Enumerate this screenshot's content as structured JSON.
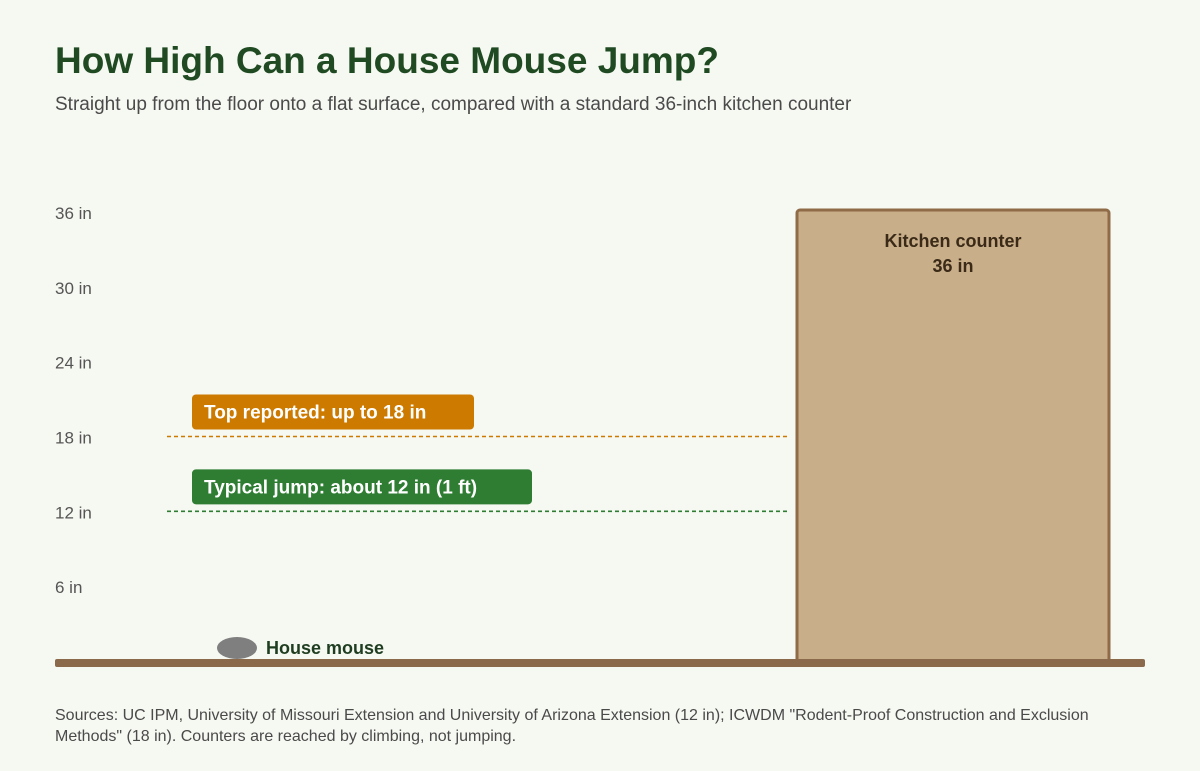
{
  "title": "How High Can a House Mouse Jump?",
  "subtitle": "Straight up from the floor onto a flat surface, compared with a standard 36-inch kitchen counter",
  "sources": "Sources: UC IPM, University of Missouri Extension and University of Arizona Extension (12 in); ICWDM \"Rodent-Proof Construction and Exclusion Methods\" (18 in). Counters are reached by climbing, not jumping.",
  "chart_data": {
    "type": "bar",
    "unit": "in",
    "y_ticks": [
      "6 in",
      "12 in",
      "18 in",
      "24 in",
      "30 in",
      "36 in"
    ],
    "y_tick_values": [
      6,
      12,
      18,
      24,
      30,
      36
    ],
    "ylim": [
      0,
      36
    ],
    "grid": false,
    "bar": {
      "label": "Kitchen counter",
      "value_label": "36 in",
      "value": 36
    },
    "reference_lines": [
      {
        "id": "top",
        "label": "Top reported: up to 18 in",
        "value": 18
      },
      {
        "id": "typical",
        "label": "Typical jump: about 12 in (1 ft)",
        "value": 12
      }
    ],
    "marker": {
      "label": "House mouse",
      "value": 0
    }
  },
  "colors": {
    "title": "#1f4a22",
    "floor": "#8b6a4b",
    "counter_fill": "#c9ae8a",
    "counter_stroke": "#8f6b47",
    "counter_text": "#3a2a17",
    "top_line": "#cc7a00",
    "typical_line": "#2e7d32",
    "mouse": "#7f7f7f",
    "mouse_label": "#1f3e21",
    "tick_text": "#555555"
  }
}
